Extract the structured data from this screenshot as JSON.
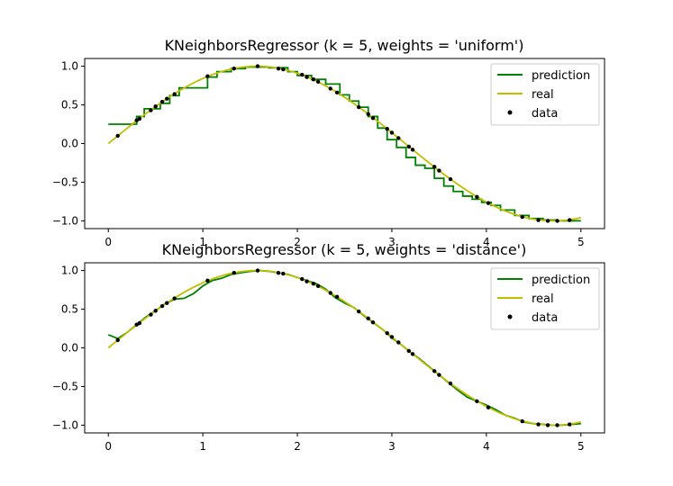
{
  "chart_data": [
    {
      "type": "line",
      "title": "KNeighborsRegressor (k = 5, weights = 'uniform')",
      "xlabel": "",
      "ylabel": "",
      "xlim": [
        -0.25,
        5.25
      ],
      "ylim": [
        -1.1,
        1.1
      ],
      "xticks": [
        "0",
        "1",
        "2",
        "3",
        "4",
        "5"
      ],
      "yticks": [
        "−1.0",
        "−0.5",
        "0.0",
        "0.5",
        "1.0"
      ],
      "legend": {
        "position": "top-right",
        "entries": [
          "prediction",
          "real",
          "data"
        ]
      },
      "colors": {
        "prediction": "#008000",
        "real": "#bfbf00",
        "data": "#000000"
      },
      "series": [
        {
          "name": "prediction",
          "style": "step",
          "x": [
            0,
            0.1,
            0.3,
            0.38,
            0.45,
            0.55,
            0.65,
            0.75,
            1.05,
            1.15,
            1.3,
            1.45,
            1.7,
            1.9,
            2.0,
            2.15,
            2.3,
            2.45,
            2.55,
            2.65,
            2.75,
            2.85,
            2.95,
            3.05,
            3.15,
            3.25,
            3.35,
            3.45,
            3.55,
            3.65,
            3.75,
            3.85,
            3.95,
            4.05,
            4.15,
            4.3,
            4.45,
            4.6,
            4.75,
            5.0
          ],
          "y": [
            0.25,
            0.25,
            0.35,
            0.45,
            0.45,
            0.52,
            0.62,
            0.72,
            0.86,
            0.93,
            0.97,
            0.99,
            0.98,
            0.93,
            0.88,
            0.83,
            0.77,
            0.63,
            0.55,
            0.47,
            0.35,
            0.2,
            0.05,
            -0.05,
            -0.18,
            -0.28,
            -0.32,
            -0.45,
            -0.55,
            -0.62,
            -0.68,
            -0.72,
            -0.76,
            -0.8,
            -0.86,
            -0.93,
            -0.97,
            -0.99,
            -1.0,
            -1.0
          ]
        },
        {
          "name": "real",
          "style": "sine",
          "x0": 0,
          "x1": 5,
          "samples": 101
        }
      ],
      "points": {
        "name": "data",
        "x": [
          0.1,
          0.3,
          0.33,
          0.45,
          0.5,
          0.57,
          0.62,
          0.7,
          1.05,
          1.33,
          1.58,
          1.8,
          1.85,
          2.05,
          2.1,
          2.17,
          2.22,
          2.35,
          2.42,
          2.65,
          2.75,
          2.8,
          2.95,
          3.0,
          3.07,
          3.18,
          3.22,
          3.45,
          3.5,
          3.62,
          3.9,
          4.02,
          4.38,
          4.55,
          4.65,
          4.75,
          4.88
        ],
        "y": [
          0.1,
          0.3,
          0.32,
          0.43,
          0.48,
          0.54,
          0.58,
          0.64,
          0.87,
          0.97,
          1.0,
          0.97,
          0.96,
          0.89,
          0.86,
          0.83,
          0.8,
          0.71,
          0.66,
          0.47,
          0.38,
          0.33,
          0.19,
          0.14,
          0.07,
          -0.04,
          -0.08,
          -0.3,
          -0.35,
          -0.46,
          -0.69,
          -0.77,
          -0.95,
          -0.99,
          -1.0,
          -1.0,
          -0.99
        ]
      }
    },
    {
      "type": "line",
      "title": "KNeighborsRegressor (k = 5, weights = 'distance')",
      "xlabel": "",
      "ylabel": "",
      "xlim": [
        -0.25,
        5.25
      ],
      "ylim": [
        -1.1,
        1.1
      ],
      "xticks": [
        "0",
        "1",
        "2",
        "3",
        "4",
        "5"
      ],
      "yticks": [
        "−1.0",
        "−0.5",
        "0.0",
        "0.5",
        "1.0"
      ],
      "legend": {
        "position": "top-right",
        "entries": [
          "prediction",
          "real",
          "data"
        ]
      },
      "colors": {
        "prediction": "#008000",
        "real": "#bfbf00",
        "data": "#000000"
      },
      "series": [
        {
          "name": "prediction",
          "style": "line",
          "x": [
            0,
            0.1,
            0.2,
            0.3,
            0.4,
            0.5,
            0.6,
            0.7,
            0.8,
            0.9,
            1.0,
            1.1,
            1.2,
            1.3,
            1.4,
            1.5,
            1.6,
            1.7,
            1.8,
            1.9,
            2.0,
            2.1,
            2.2,
            2.3,
            2.4,
            2.5,
            2.6,
            2.7,
            2.8,
            2.9,
            3.0,
            3.1,
            3.2,
            3.3,
            3.4,
            3.5,
            3.6,
            3.7,
            3.8,
            3.9,
            4.0,
            4.1,
            4.2,
            4.3,
            4.4,
            4.5,
            4.6,
            4.7,
            4.8,
            4.9,
            5.0
          ],
          "y": [
            0.17,
            0.12,
            0.2,
            0.3,
            0.4,
            0.48,
            0.57,
            0.63,
            0.64,
            0.7,
            0.8,
            0.87,
            0.9,
            0.95,
            0.97,
            0.99,
            1.0,
            0.99,
            0.97,
            0.95,
            0.91,
            0.87,
            0.83,
            0.76,
            0.65,
            0.58,
            0.52,
            0.42,
            0.33,
            0.24,
            0.13,
            0.04,
            -0.06,
            -0.15,
            -0.25,
            -0.35,
            -0.45,
            -0.55,
            -0.64,
            -0.69,
            -0.74,
            -0.8,
            -0.87,
            -0.91,
            -0.96,
            -0.98,
            -0.99,
            -1.0,
            -1.0,
            -0.99,
            -0.98
          ]
        },
        {
          "name": "real",
          "style": "sine",
          "x0": 0,
          "x1": 5,
          "samples": 101
        }
      ],
      "points": {
        "name": "data",
        "x": [
          0.1,
          0.3,
          0.33,
          0.45,
          0.5,
          0.57,
          0.62,
          0.7,
          1.05,
          1.33,
          1.58,
          1.8,
          1.85,
          2.05,
          2.1,
          2.17,
          2.22,
          2.35,
          2.42,
          2.65,
          2.75,
          2.8,
          2.95,
          3.0,
          3.07,
          3.18,
          3.22,
          3.45,
          3.5,
          3.62,
          3.9,
          4.02,
          4.38,
          4.55,
          4.65,
          4.75,
          4.88
        ],
        "y": [
          0.1,
          0.3,
          0.32,
          0.43,
          0.48,
          0.54,
          0.58,
          0.64,
          0.87,
          0.97,
          1.0,
          0.97,
          0.96,
          0.89,
          0.86,
          0.83,
          0.8,
          0.71,
          0.66,
          0.47,
          0.38,
          0.33,
          0.19,
          0.14,
          0.07,
          -0.04,
          -0.08,
          -0.3,
          -0.35,
          -0.46,
          -0.69,
          -0.77,
          -0.95,
          -0.99,
          -1.0,
          -1.0,
          -0.99
        ]
      }
    }
  ]
}
